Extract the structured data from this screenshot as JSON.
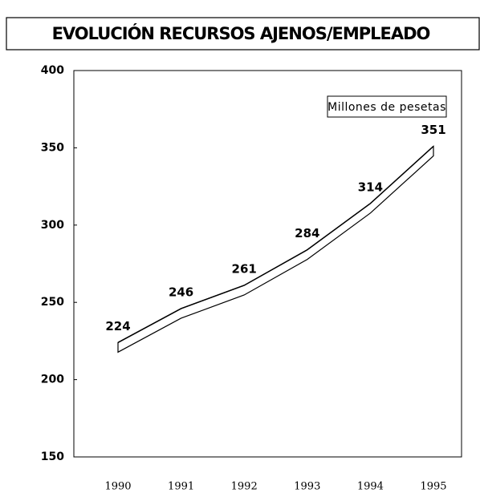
{
  "chart_data": {
    "type": "line",
    "title": "EVOLUCIÓN RECURSOS AJENOS/EMPLEADO",
    "unit_label": "Millones de pesetas",
    "categories": [
      "1990",
      "1991",
      "1992",
      "1993",
      "1994",
      "1995"
    ],
    "values": [
      224,
      246,
      261,
      284,
      314,
      351
    ],
    "color": "#000000",
    "ylim": [
      150,
      400
    ],
    "yticks": [
      150,
      200,
      250,
      300,
      350,
      400
    ],
    "grid": false
  }
}
